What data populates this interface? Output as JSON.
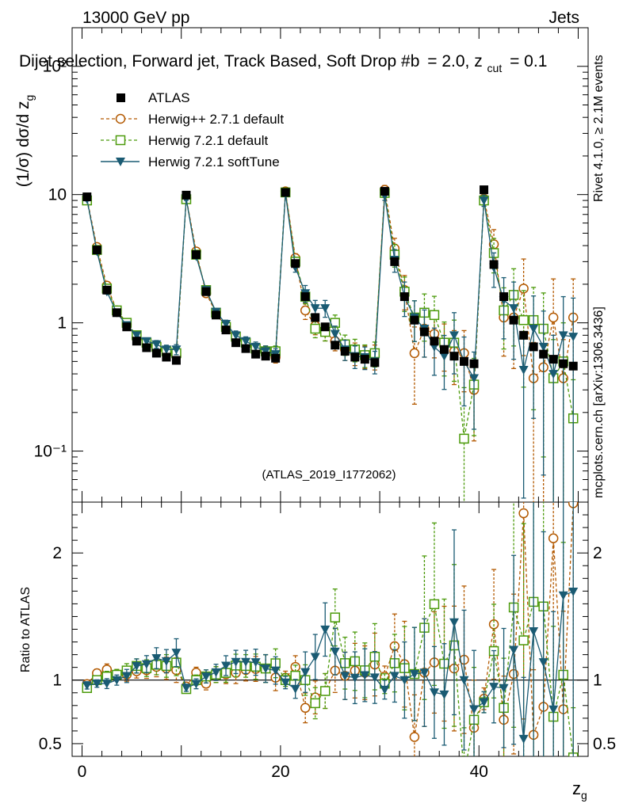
{
  "header": {
    "energy": "13000 GeV pp",
    "category": "Jets",
    "title": "Dijet selection, Forward jet, Track Based, Soft Drop #b",
    "beta_text": "= 2.0, z",
    "zcut_sub": "cut",
    "zcut_tail": "= 0.1",
    "side_version": "Rivet 4.1.0, ≥ 2.1M events",
    "side_site": "mcplots.cern.ch [arXiv:1306.3436]",
    "analysis_id": "(ATLAS_2019_I1772062)"
  },
  "legend": [
    {
      "key": "atlas",
      "label": "ATLAS"
    },
    {
      "key": "herwigpp",
      "label": "Herwig++ 2.7.1 default"
    },
    {
      "key": "herwig72",
      "label": "Herwig 7.2.1 default"
    },
    {
      "key": "softtune",
      "label": "Herwig 7.2.1 softTune"
    }
  ],
  "colors": {
    "atlas": "#000000",
    "herwigpp": "#b35900",
    "herwig72": "#4b9a0a",
    "softtune": "#1a5b73"
  },
  "chart_data": {
    "type": "scatter",
    "x": [
      0.5,
      1.5,
      2.5,
      3.5,
      4.5,
      5.5,
      6.5,
      7.5,
      8.5,
      9.5,
      10.5,
      11.5,
      12.5,
      13.5,
      14.5,
      15.5,
      16.5,
      17.5,
      18.5,
      19.5,
      20.5,
      21.5,
      22.5,
      23.5,
      24.5,
      25.5,
      26.5,
      27.5,
      28.5,
      29.5,
      30.5,
      31.5,
      32.5,
      33.5,
      34.5,
      35.5,
      36.5,
      37.5,
      38.5,
      39.5,
      40.5,
      41.5,
      42.5,
      43.5,
      44.5,
      45.5,
      46.5,
      47.5,
      48.5,
      49.5
    ],
    "xlabel": "z_g",
    "ylabel": "(1/σ) dσ/d z_g",
    "ratio_ylabel": "Ratio to ATLAS",
    "xlim": [
      -1,
      51
    ],
    "ylim": [
      0.04,
      200
    ],
    "ratio_ylim": [
      0.4,
      2.4
    ],
    "xticks": [
      0,
      20,
      40
    ],
    "xtick_labels": [
      "0",
      "20",
      "40"
    ],
    "yticks": [
      0.1,
      1,
      10,
      100
    ],
    "ytick_labels": [
      "10⁻¹",
      "1",
      "10",
      "10²"
    ],
    "ratio_yticks": [
      0.5,
      1,
      2
    ],
    "ratio_ytick_labels": [
      "0.5",
      "1",
      "2"
    ],
    "series": [
      {
        "key": "atlas",
        "name": "ATLAS",
        "marker": "square-filled",
        "values": [
          9.6,
          3.7,
          1.8,
          1.2,
          0.93,
          0.72,
          0.64,
          0.58,
          0.54,
          0.51,
          9.9,
          3.4,
          1.75,
          1.15,
          0.88,
          0.7,
          0.63,
          0.57,
          0.55,
          0.53,
          10.4,
          2.9,
          1.6,
          1.1,
          0.93,
          0.67,
          0.6,
          0.54,
          0.52,
          0.49,
          10.6,
          3.0,
          1.6,
          1.05,
          0.85,
          0.72,
          0.62,
          0.55,
          0.5,
          0.48,
          10.9,
          2.85,
          1.6,
          1.05,
          0.8,
          0.65,
          0.57,
          0.52,
          0.48,
          0.46
        ],
        "errors": [
          0.05,
          0.03,
          0.03,
          0.02,
          0.02,
          0.02,
          0.02,
          0.02,
          0.02,
          0.02,
          0.05,
          0.03,
          0.03,
          0.03,
          0.03,
          0.03,
          0.03,
          0.03,
          0.03,
          0.03,
          0.05,
          0.04,
          0.04,
          0.05,
          0.05,
          0.05,
          0.05,
          0.05,
          0.05,
          0.05,
          0.05,
          0.06,
          0.07,
          0.08,
          0.08,
          0.08,
          0.09,
          0.09,
          0.1,
          0.1,
          0.06,
          0.08,
          0.1,
          0.1,
          0.1,
          0.12,
          0.12,
          0.12,
          0.12,
          0.12
        ]
      },
      {
        "key": "herwigpp",
        "name": "Herwig++ 2.7.1 default",
        "marker": "circle-open",
        "values": [
          9.3,
          3.9,
          1.95,
          1.25,
          0.97,
          0.77,
          0.69,
          0.64,
          0.59,
          0.55,
          9.4,
          3.6,
          1.7,
          1.2,
          0.92,
          0.74,
          0.68,
          0.62,
          0.6,
          0.54,
          10.6,
          3.2,
          1.25,
          0.95,
          0.85,
          0.72,
          0.62,
          0.58,
          0.55,
          0.55,
          10.9,
          3.8,
          1.8,
          0.58,
          0.9,
          0.82,
          0.7,
          0.6,
          0.58,
          0.3,
          9.3,
          4.1,
          1.1,
          1.1,
          1.85,
          0.37,
          0.45,
          1.1,
          0.37,
          1.1
        ],
        "errors": [
          0.03,
          0.03,
          0.04,
          0.04,
          0.05,
          0.05,
          0.06,
          0.07,
          0.08,
          0.09,
          0.03,
          0.04,
          0.05,
          0.06,
          0.07,
          0.08,
          0.08,
          0.09,
          0.1,
          0.1,
          0.05,
          0.08,
          0.15,
          0.15,
          0.15,
          0.16,
          0.18,
          0.2,
          0.2,
          0.22,
          0.08,
          0.2,
          0.3,
          0.6,
          0.4,
          0.35,
          0.4,
          0.45,
          0.5,
          0.6,
          0.1,
          0.3,
          0.5,
          0.6,
          0.7,
          0.9,
          1.0,
          1.0,
          1.0,
          1.0
        ]
      },
      {
        "key": "herwig72",
        "name": "Herwig 7.2.1 default",
        "marker": "square-open",
        "values": [
          9.0,
          3.7,
          1.85,
          1.25,
          1.0,
          0.8,
          0.7,
          0.65,
          0.6,
          0.58,
          9.2,
          3.4,
          1.8,
          1.2,
          0.93,
          0.78,
          0.7,
          0.63,
          0.6,
          0.6,
          10.4,
          3.0,
          1.6,
          0.9,
          0.85,
          1.0,
          0.68,
          0.62,
          0.56,
          0.58,
          10.3,
          3.4,
          1.75,
          1.1,
          1.2,
          1.15,
          0.7,
          0.7,
          0.125,
          0.33,
          9.0,
          3.5,
          1.25,
          1.65,
          1.05,
          1.05,
          0.9,
          0.37,
          0.5,
          0.18
        ],
        "errors": [
          0.03,
          0.03,
          0.04,
          0.04,
          0.05,
          0.05,
          0.06,
          0.07,
          0.08,
          0.09,
          0.03,
          0.04,
          0.05,
          0.06,
          0.07,
          0.08,
          0.08,
          0.09,
          0.1,
          0.1,
          0.05,
          0.08,
          0.12,
          0.15,
          0.15,
          0.15,
          0.18,
          0.2,
          0.2,
          0.22,
          0.08,
          0.2,
          0.3,
          0.35,
          0.4,
          0.4,
          0.45,
          0.5,
          1.5,
          0.6,
          0.1,
          0.3,
          0.5,
          0.6,
          0.7,
          0.8,
          0.9,
          1.0,
          1.0,
          1.0
        ]
      },
      {
        "key": "softtune",
        "name": "Herwig 7.2.1 softTune",
        "marker": "triangle-down-filled",
        "values": [
          9.2,
          3.6,
          1.75,
          1.2,
          0.96,
          0.8,
          0.72,
          0.68,
          0.62,
          0.62,
          9.3,
          3.3,
          1.8,
          1.22,
          0.98,
          0.8,
          0.72,
          0.65,
          0.6,
          0.57,
          10.2,
          2.7,
          1.7,
          1.3,
          1.3,
          0.82,
          0.62,
          0.55,
          0.54,
          0.5,
          9.8,
          3.1,
          1.6,
          1.1,
          0.9,
          0.65,
          0.55,
          0.8,
          0.5,
          0.37,
          9.0,
          2.7,
          1.5,
          1.3,
          0.43,
          0.9,
          0.65,
          0.4,
          0.8,
          0.78
        ],
        "errors": [
          0.03,
          0.03,
          0.04,
          0.04,
          0.05,
          0.05,
          0.06,
          0.07,
          0.08,
          0.09,
          0.03,
          0.04,
          0.05,
          0.06,
          0.07,
          0.08,
          0.08,
          0.09,
          0.1,
          0.1,
          0.05,
          0.08,
          0.15,
          0.15,
          0.15,
          0.15,
          0.18,
          0.2,
          0.2,
          0.2,
          0.08,
          0.2,
          0.3,
          0.35,
          0.4,
          0.4,
          0.45,
          0.5,
          0.55,
          0.6,
          0.1,
          0.3,
          0.5,
          0.6,
          0.9,
          0.8,
          0.9,
          1.0,
          1.0,
          1.0
        ]
      }
    ]
  }
}
